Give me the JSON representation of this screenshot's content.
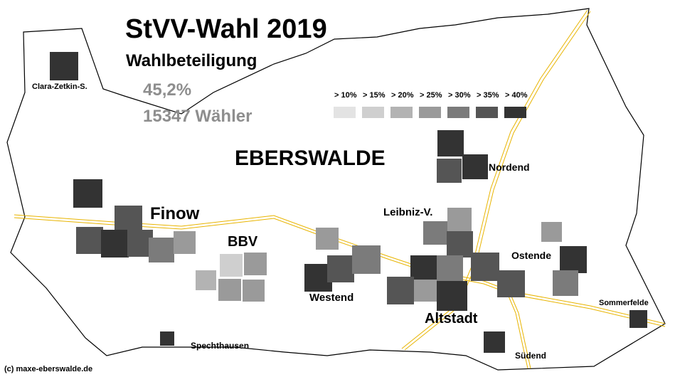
{
  "title": "StVV-Wahl 2019",
  "subtitle": "Wahlbeteiligung",
  "turnout": "45,2%",
  "voters": "15347 Wähler",
  "city": "EBERSWALDE",
  "copyright": "(c) maxe-eberswalde.de",
  "legend": [
    {
      "label": "> 10%",
      "color": "#e3e3e3"
    },
    {
      "label": "> 15%",
      "color": "#cfcfcf"
    },
    {
      "label": "> 20%",
      "color": "#b3b3b3"
    },
    {
      "label": "> 25%",
      "color": "#9a9a9a"
    },
    {
      "label": "> 30%",
      "color": "#7b7b7b"
    },
    {
      "label": "> 35%",
      "color": "#555555"
    },
    {
      "label": "> 40%",
      "color": "#333333"
    }
  ],
  "districts": {
    "clara_zetkin": "Clara-Zetkin-S.",
    "finow": "Finow",
    "bbv": "BBV",
    "leibniz": "Leibniz-V.",
    "nordend": "Nordend",
    "ostende": "Ostende",
    "westend": "Westend",
    "altstadt": "Altstadt",
    "sommerfelde": "Sommerfelde",
    "spechthausen": "Spechthausen",
    "suedend": "Südend"
  }
}
